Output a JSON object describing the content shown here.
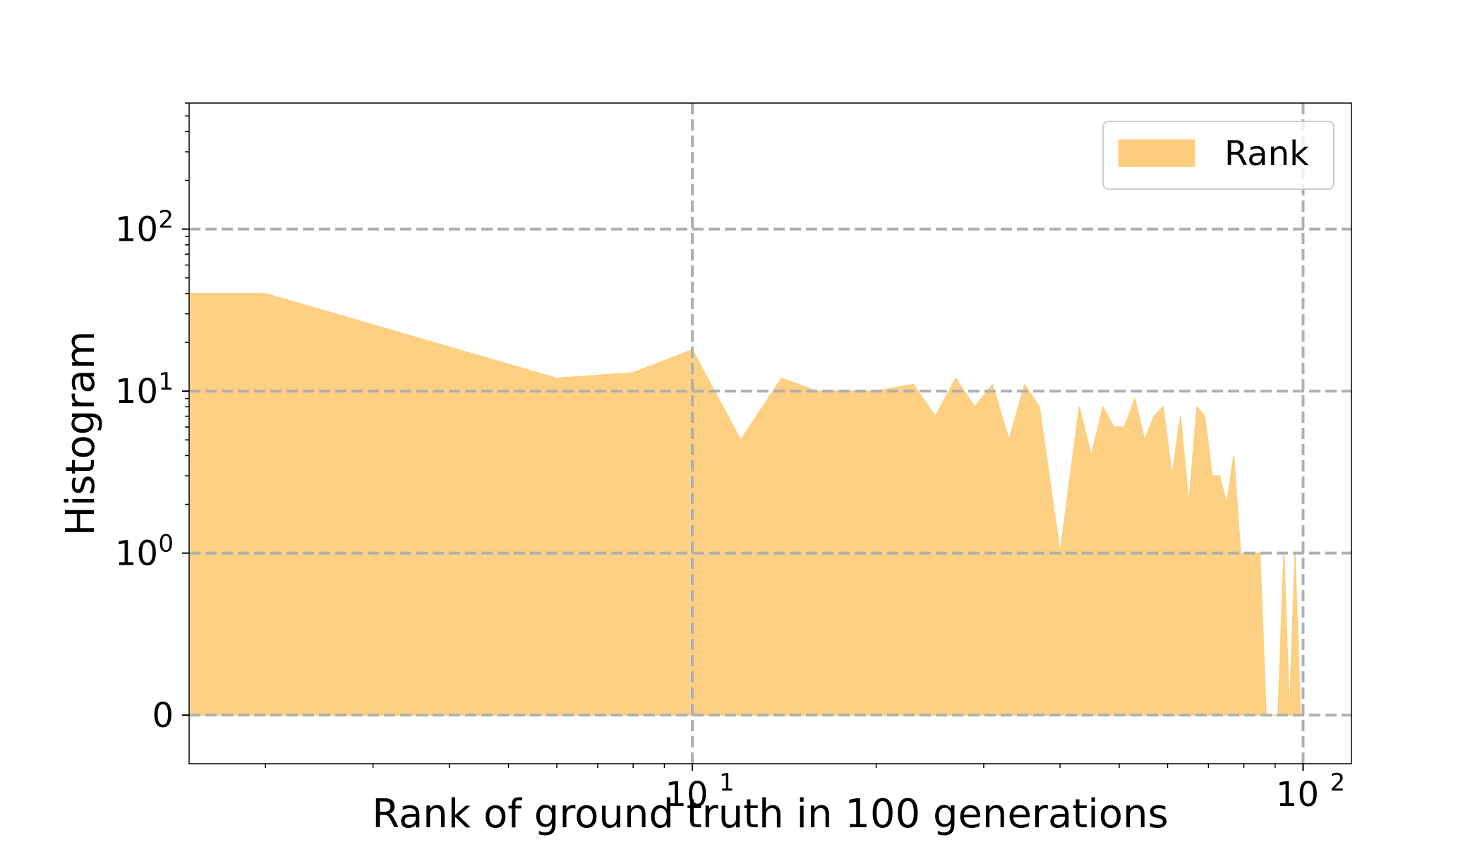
{
  "chart_data": {
    "type": "area",
    "xlabel": "Rank of ground truth in 100 generations",
    "ylabel": "Histogram",
    "x_scale": "log",
    "y_scale": "symlog",
    "xlim": [
      1.5,
      120
    ],
    "ylim": [
      -0.3,
      600
    ],
    "x_ticks": [
      {
        "value": 10,
        "base": "10",
        "exp": "1"
      },
      {
        "value": 100,
        "base": "10",
        "exp": "2"
      }
    ],
    "y_ticks": [
      {
        "value": 0,
        "base": "0",
        "exp": ""
      },
      {
        "value": 1,
        "base": "10",
        "exp": "0"
      },
      {
        "value": 10,
        "base": "10",
        "exp": "1"
      },
      {
        "value": 100,
        "base": "10",
        "exp": "2"
      }
    ],
    "grid": true,
    "legend_position": "top-right",
    "series": [
      {
        "name": "Rank",
        "color": "#fdcd7d",
        "x": [
          1,
          2,
          6,
          8,
          10,
          12,
          14,
          16,
          18,
          20,
          23,
          25,
          27,
          29,
          31,
          33,
          35,
          37,
          40,
          43,
          45,
          47,
          49,
          51,
          53,
          55,
          57,
          59,
          61,
          63,
          65,
          67,
          69,
          71,
          73,
          75,
          77,
          79,
          81,
          83,
          85,
          87,
          89,
          91,
          93,
          95,
          97,
          99
        ],
        "y": [
          40,
          40,
          12,
          13,
          18,
          5,
          12,
          10,
          10,
          10,
          11,
          7,
          12,
          8,
          11,
          5,
          11,
          8,
          1,
          8,
          4,
          8,
          6,
          6,
          9,
          5,
          7,
          8,
          3,
          7,
          2,
          8,
          7,
          3,
          3,
          2,
          4,
          1,
          1,
          1,
          1,
          0,
          0,
          0,
          1,
          0,
          1,
          0
        ]
      }
    ]
  }
}
